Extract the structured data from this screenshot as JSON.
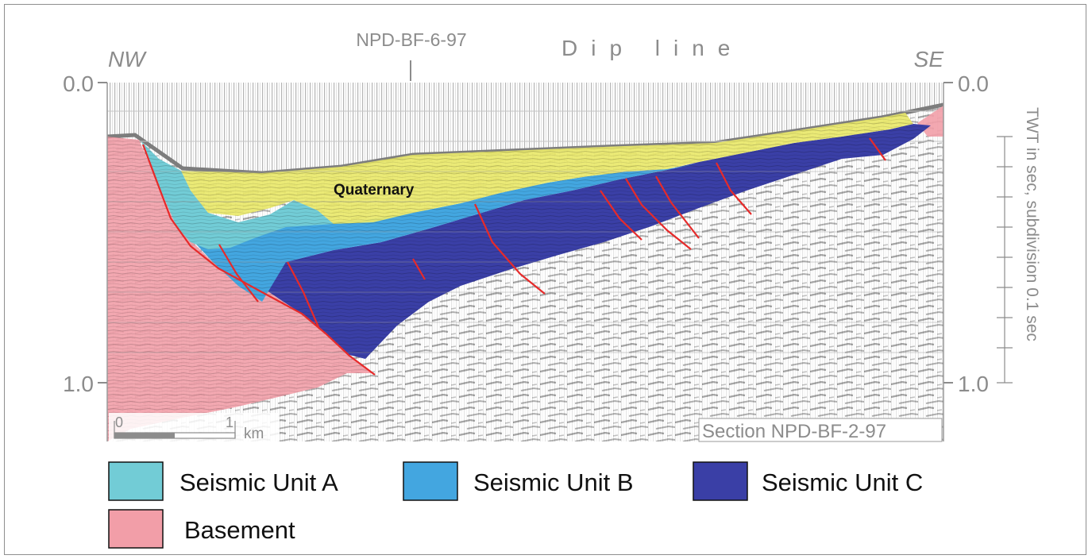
{
  "diagram": {
    "left_label": "NW",
    "right_label": "SE",
    "title": "Dip line",
    "crossing_line": "NPD-BF-6-97",
    "section_name": "Section NPD-BF-2-97",
    "quaternary_label": "Quaternary",
    "axis_title": "TWT in sec, subdivision 0.1 sec",
    "axis_left_top": "0.0",
    "axis_left_bottom": "1.0",
    "axis_right_top": "0.0",
    "axis_right_bottom": "1.0",
    "scale_zero": "0",
    "scale_one": "1",
    "scale_unit": "km"
  },
  "colors": {
    "unit_a": "#72ccd6",
    "unit_b": "#43a6e0",
    "unit_c": "#3a3fa6",
    "basement": "#f29ea8",
    "quaternary": "#e9e86a",
    "faults": "#e62a2a"
  },
  "legend": [
    {
      "label": "Seismic Unit A",
      "color": "#72ccd6"
    },
    {
      "label": "Seismic Unit B",
      "color": "#43a6e0"
    },
    {
      "label": "Seismic Unit C",
      "color": "#3a3fa6"
    },
    {
      "label": "Basement",
      "color": "#f29ea8"
    }
  ]
}
